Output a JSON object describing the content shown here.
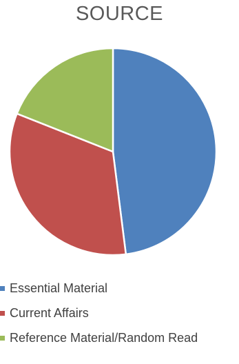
{
  "chart_data": {
    "type": "pie",
    "title": "SOURCE",
    "legend_position": "bottom",
    "start_angle_deg": 0,
    "direction": "clockwise",
    "slices": [
      {
        "label": "Essential Material",
        "value": 48,
        "color": "#4f81bd"
      },
      {
        "label": "Current Affairs",
        "value": 33,
        "color": "#c0504d"
      },
      {
        "label": "Reference Material/Random Read",
        "value": 19,
        "color": "#9bbb59"
      }
    ]
  }
}
